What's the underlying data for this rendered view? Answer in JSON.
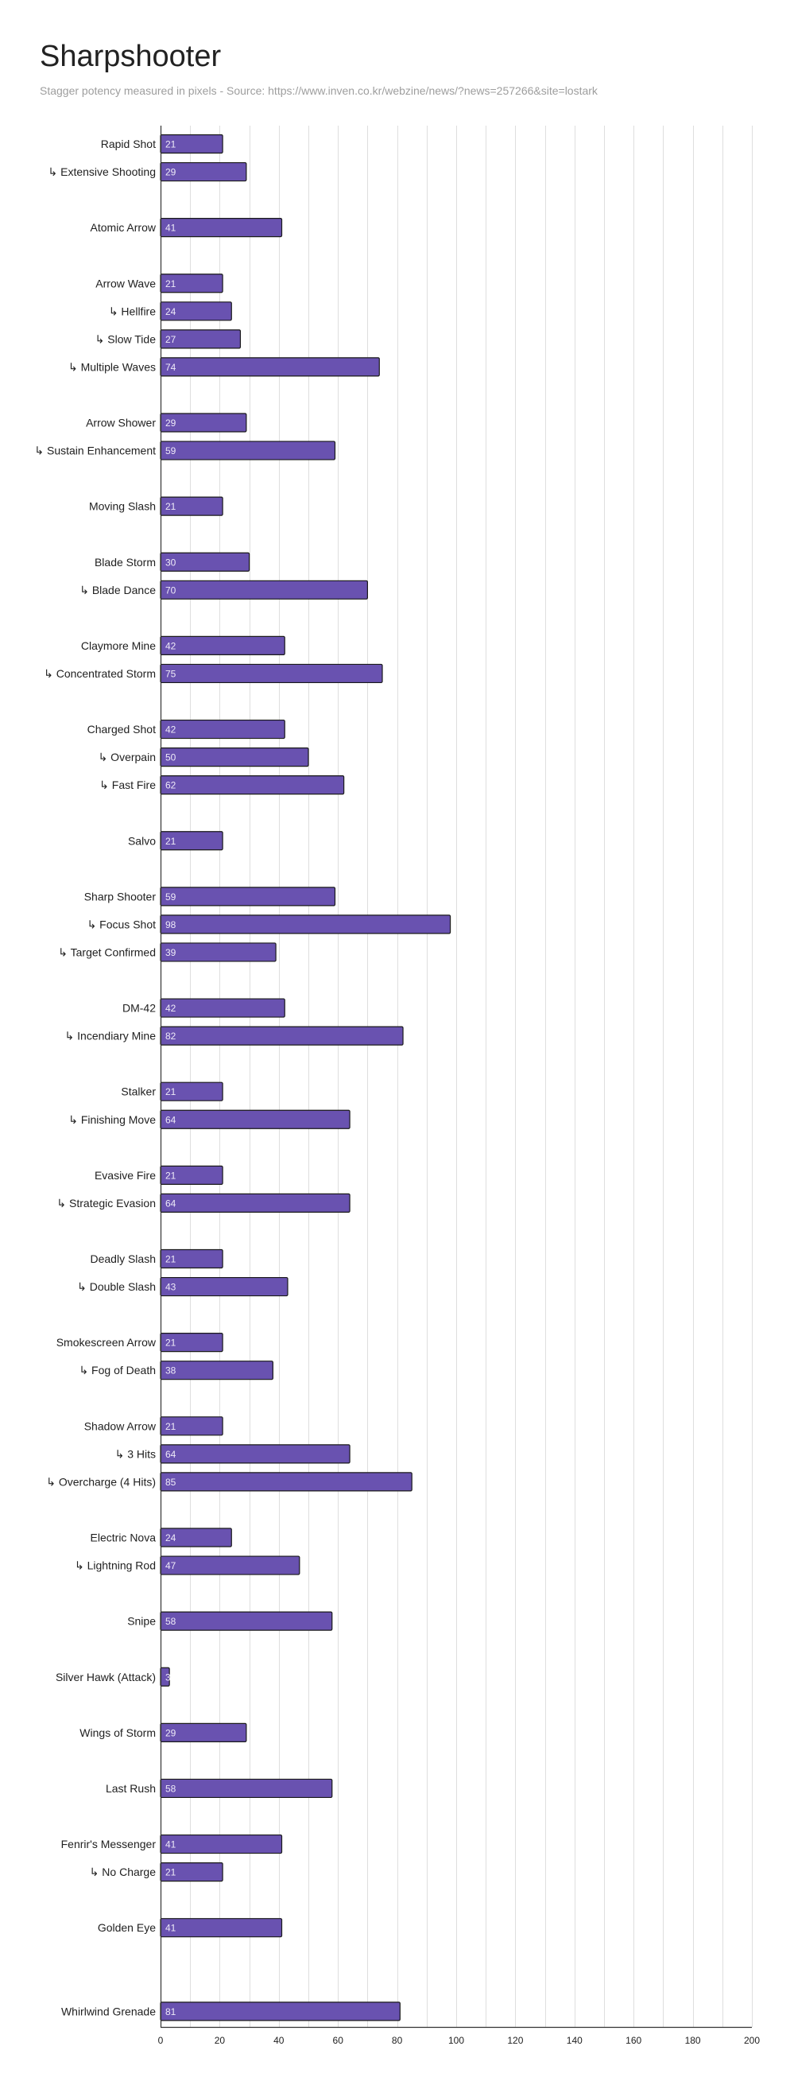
{
  "chart_data": {
    "type": "bar",
    "orientation": "horizontal",
    "title": "Sharpshooter",
    "subtitle": "Stagger potency measured in pixels - Source: https://www.inven.co.kr/webzine/news/?news=257266&site=lostark",
    "xlim": [
      0,
      200
    ],
    "xticks": [
      "0",
      "20",
      "40",
      "60",
      "80",
      "100",
      "120",
      "140",
      "160",
      "180",
      "200"
    ],
    "grid": true,
    "bar_color": "#6952b0",
    "bar_edge_color": "#1a1a1a",
    "rows": [
      {
        "label": "Rapid Shot",
        "value": 21,
        "value_label": "21"
      },
      {
        "label": "↳ Extensive Shooting",
        "value": 29,
        "value_label": "29"
      },
      null,
      {
        "label": "Atomic Arrow",
        "value": 41,
        "value_label": "41"
      },
      null,
      {
        "label": "Arrow Wave",
        "value": 21,
        "value_label": "21"
      },
      {
        "label": "↳ Hellfire",
        "value": 24,
        "value_label": "24"
      },
      {
        "label": "↳ Slow Tide",
        "value": 27,
        "value_label": "27"
      },
      {
        "label": "↳ Multiple Waves",
        "value": 74,
        "value_label": "74"
      },
      null,
      {
        "label": "Arrow Shower",
        "value": 29,
        "value_label": "29"
      },
      {
        "label": "↳ Sustain Enhancement",
        "value": 59,
        "value_label": "59"
      },
      null,
      {
        "label": "Moving Slash",
        "value": 21,
        "value_label": "21"
      },
      null,
      {
        "label": "Blade Storm",
        "value": 30,
        "value_label": "30"
      },
      {
        "label": "↳ Blade Dance",
        "value": 70,
        "value_label": "70"
      },
      null,
      {
        "label": "Claymore Mine",
        "value": 42,
        "value_label": "42"
      },
      {
        "label": "↳ Concentrated Storm",
        "value": 75,
        "value_label": "75"
      },
      null,
      {
        "label": "Charged Shot",
        "value": 42,
        "value_label": "42"
      },
      {
        "label": "↳ Overpain",
        "value": 50,
        "value_label": "50"
      },
      {
        "label": "↳ Fast Fire",
        "value": 62,
        "value_label": "62"
      },
      null,
      {
        "label": "Salvo",
        "value": 21,
        "value_label": "21"
      },
      null,
      {
        "label": "Sharp Shooter",
        "value": 59,
        "value_label": "59"
      },
      {
        "label": "↳ Focus Shot",
        "value": 98,
        "value_label": "98"
      },
      {
        "label": "↳ Target Confirmed",
        "value": 39,
        "value_label": "39"
      },
      null,
      {
        "label": "DM-42",
        "value": 42,
        "value_label": "42"
      },
      {
        "label": "↳ Incendiary Mine",
        "value": 82,
        "value_label": "82"
      },
      null,
      {
        "label": "Stalker",
        "value": 21,
        "value_label": "21"
      },
      {
        "label": "↳ Finishing Move",
        "value": 64,
        "value_label": "64"
      },
      null,
      {
        "label": "Evasive Fire",
        "value": 21,
        "value_label": "21"
      },
      {
        "label": "↳ Strategic Evasion",
        "value": 64,
        "value_label": "64"
      },
      null,
      {
        "label": "Deadly Slash",
        "value": 21,
        "value_label": "21"
      },
      {
        "label": "↳ Double Slash",
        "value": 43,
        "value_label": "43"
      },
      null,
      {
        "label": "Smokescreen Arrow",
        "value": 21,
        "value_label": "21"
      },
      {
        "label": "↳ Fog of Death",
        "value": 38,
        "value_label": "38"
      },
      null,
      {
        "label": "Shadow Arrow",
        "value": 21,
        "value_label": "21"
      },
      {
        "label": "↳ 3 Hits",
        "value": 64,
        "value_label": "64"
      },
      {
        "label": "↳ Overcharge (4 Hits)",
        "value": 85,
        "value_label": "85"
      },
      null,
      {
        "label": "Electric Nova",
        "value": 24,
        "value_label": "24"
      },
      {
        "label": "↳ Lightning Rod",
        "value": 47,
        "value_label": "47"
      },
      null,
      {
        "label": "Snipe",
        "value": 58,
        "value_label": "58"
      },
      null,
      {
        "label": "Silver Hawk (Attack)",
        "value": 3,
        "value_label": "3"
      },
      null,
      {
        "label": "Wings of Storm",
        "value": 29,
        "value_label": "29"
      },
      null,
      {
        "label": "Last Rush",
        "value": 58,
        "value_label": "58"
      },
      null,
      {
        "label": "Fenrir's Messenger",
        "value": 41,
        "value_label": "41"
      },
      {
        "label": "↳ No Charge",
        "value": 21,
        "value_label": "21"
      },
      null,
      {
        "label": "Golden Eye",
        "value": 41,
        "value_label": "41"
      },
      null,
      null,
      {
        "label": "Whirlwind Grenade",
        "value": 81,
        "value_label": "81"
      }
    ]
  }
}
